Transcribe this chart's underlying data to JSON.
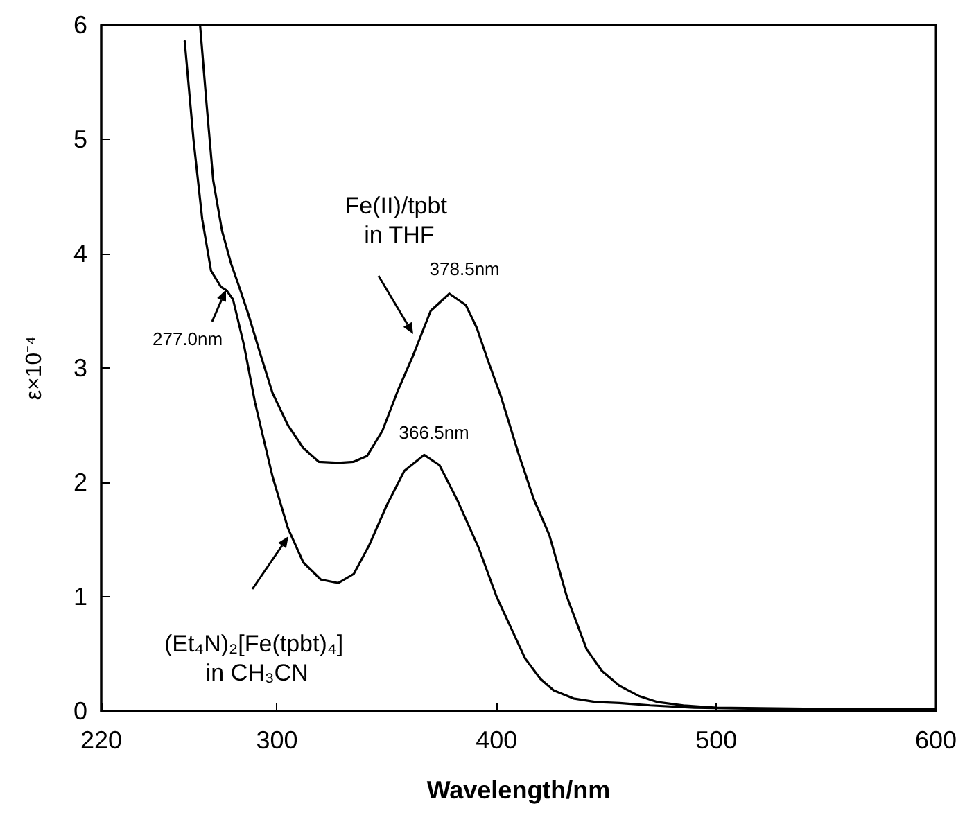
{
  "chart_data": {
    "type": "line",
    "xlabel": "Wavelength/nm",
    "ylabel": "ε×10⁻⁴",
    "xlim": [
      220,
      600
    ],
    "xticks": [
      220,
      300,
      400,
      500,
      600
    ],
    "ylim": [
      0,
      6
    ],
    "yticks": [
      0,
      1,
      2,
      3,
      4,
      5,
      6
    ],
    "grid": false,
    "marker": "none",
    "line_style": "solid",
    "series": [
      {
        "color": "#000000",
        "x": [
          258,
          262,
          266,
          270,
          274.5,
          277,
          280,
          285,
          290,
          298,
          305,
          312,
          320,
          328,
          335,
          342,
          350,
          358,
          367,
          374,
          382,
          392,
          400,
          413,
          420,
          426,
          435,
          445,
          456,
          470,
          490,
          520,
          560,
          600
        ],
        "values": [
          5.86,
          5.0,
          4.3,
          3.85,
          3.71,
          3.68,
          3.6,
          3.2,
          2.7,
          2.05,
          1.6,
          1.3,
          1.15,
          1.12,
          1.2,
          1.45,
          1.8,
          2.1,
          2.24,
          2.15,
          1.85,
          1.42,
          1.0,
          0.46,
          0.28,
          0.18,
          0.11,
          0.08,
          0.07,
          0.05,
          0.03,
          0.02,
          0.02,
          0.02
        ]
      },
      {
        "color": "#000000",
        "x": [
          265,
          268,
          271,
          275,
          279,
          283,
          287,
          292,
          298,
          305,
          312,
          319,
          328,
          335,
          341,
          348,
          355,
          362,
          370,
          378.5,
          386,
          391,
          396,
          402,
          410,
          417,
          424,
          432,
          441,
          448,
          456,
          465,
          473,
          485,
          500,
          540,
          600
        ],
        "values": [
          6.0,
          5.3,
          4.64,
          4.2,
          3.92,
          3.7,
          3.47,
          3.15,
          2.78,
          2.5,
          2.3,
          2.18,
          2.17,
          2.18,
          2.23,
          2.45,
          2.8,
          3.11,
          3.5,
          3.65,
          3.55,
          3.35,
          3.07,
          2.75,
          2.25,
          1.85,
          1.54,
          1.0,
          0.54,
          0.35,
          0.22,
          0.13,
          0.08,
          0.05,
          0.03,
          0.02,
          0.02
        ]
      }
    ],
    "annotations": [
      {
        "text": "Fe(II)/tpbt in THF",
        "x": 362,
        "y": 3.3
      },
      {
        "text": "378.5nm",
        "x": 378.5,
        "y": 3.65
      },
      {
        "text": "366.5nm",
        "x": 366.5,
        "y": 2.24
      },
      {
        "text": "277.0nm",
        "x": 277,
        "y": 3.68
      },
      "(Et₄N)₂[Fe(tpbt)₄] in CH₃CN"
    ]
  }
}
